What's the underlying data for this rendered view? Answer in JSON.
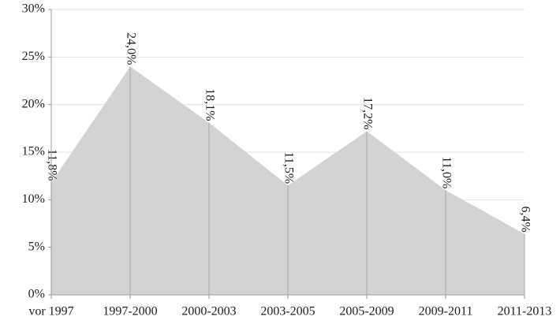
{
  "chart_data": {
    "type": "area",
    "categories": [
      "vor 1997",
      "1997-2000",
      "2000-2003",
      "2003-2005",
      "2005-2009",
      "2009-2011",
      "2011-2013"
    ],
    "values": [
      11.8,
      24.0,
      18.1,
      11.5,
      17.2,
      11.0,
      6.4
    ],
    "value_labels": [
      "11,8%",
      "24,0%",
      "18,1%",
      "11,5%",
      "17,2%",
      "11,0%",
      "6,4%"
    ],
    "color": "#d3d3d3",
    "ylim": [
      0,
      30
    ],
    "yticks": [
      {
        "value": 0,
        "label": "0%"
      },
      {
        "value": 5,
        "label": "5%"
      },
      {
        "value": 10,
        "label": "10%"
      },
      {
        "value": 15,
        "label": "15%"
      },
      {
        "value": 20,
        "label": "20%"
      },
      {
        "value": 25,
        "label": "25%"
      },
      {
        "value": 30,
        "label": "30%"
      }
    ],
    "grid": true
  }
}
